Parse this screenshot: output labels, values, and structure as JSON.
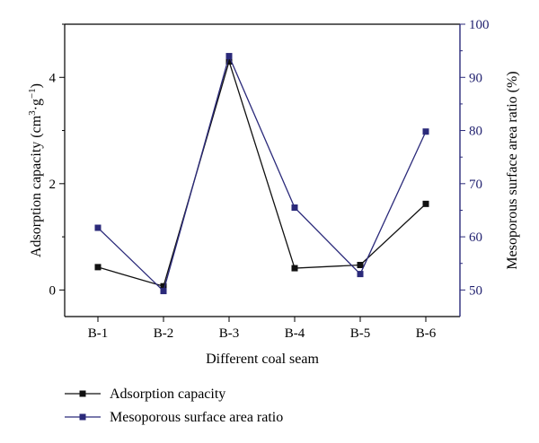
{
  "chart_data": {
    "type": "line",
    "categories": [
      "B-1",
      "B-2",
      "B-3",
      "B-4",
      "B-5",
      "B-6"
    ],
    "xlabel": "Different coal seam",
    "y_left": {
      "label_main": "Adsorption capacity (cm",
      "label_sup1": "3",
      "label_mid": "·g",
      "label_sup2": "−1",
      "label_end": ")",
      "ticks": [
        "0",
        "2",
        "4"
      ],
      "tick_values": [
        0,
        2,
        4
      ],
      "ylim": [
        -0.5,
        5.0
      ]
    },
    "y_right": {
      "label": "Mesoporous surface area ratio (%)",
      "ticks": [
        "50",
        "60",
        "70",
        "80",
        "90",
        "100"
      ],
      "tick_values": [
        50,
        60,
        70,
        80,
        90,
        100
      ],
      "ylim": [
        45,
        100
      ]
    },
    "series": [
      {
        "name": "Adsorption capacity",
        "axis": "left",
        "color": "#111111",
        "values": [
          0.43,
          0.07,
          4.3,
          0.41,
          0.47,
          1.62
        ]
      },
      {
        "name": "Mesoporous surface area ratio",
        "axis": "right",
        "color": "#2b2a7a",
        "values": [
          61.7,
          49.8,
          94.0,
          65.5,
          53.0,
          79.8
        ]
      }
    ],
    "legend_position": "bottom-left",
    "grid": false
  }
}
